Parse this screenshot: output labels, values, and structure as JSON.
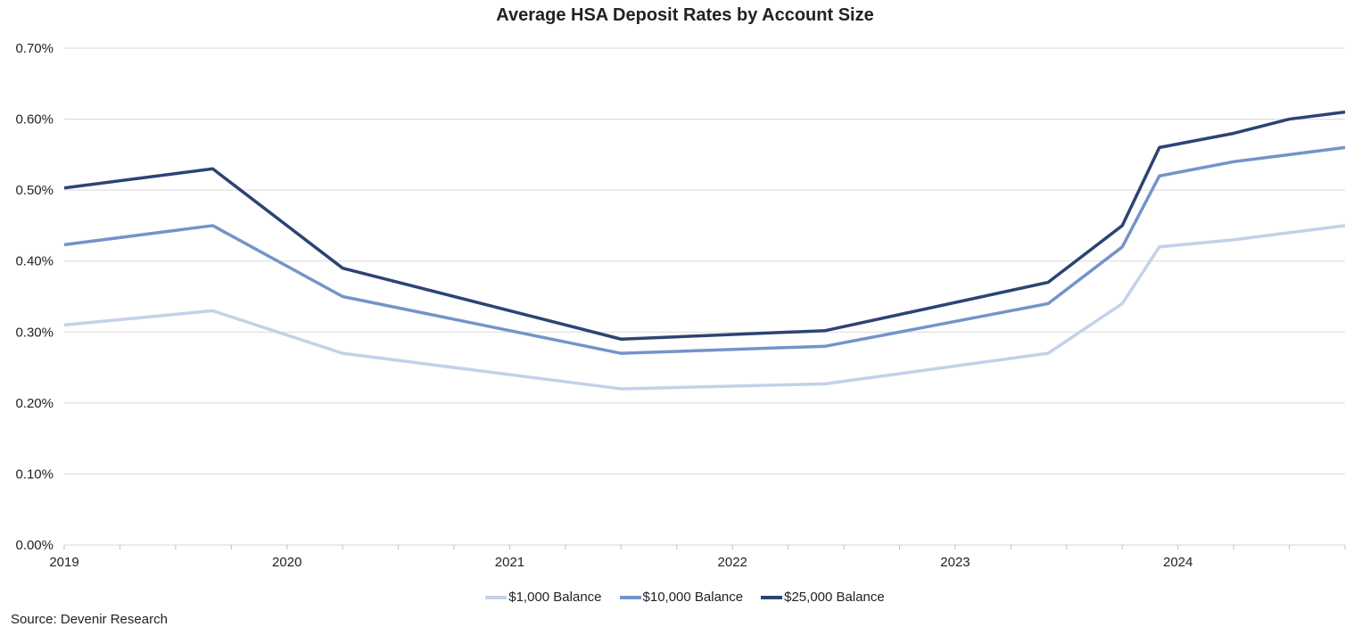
{
  "chart_data": {
    "type": "line",
    "title": "Average HSA Deposit Rates by Account Size",
    "xlabel": "",
    "ylabel": "",
    "xlim": [
      "2019-01",
      "2024-10"
    ],
    "ylim": [
      0,
      0.7
    ],
    "y_ticks": [
      "0.00%",
      "0.10%",
      "0.20%",
      "0.30%",
      "0.40%",
      "0.50%",
      "0.60%",
      "0.70%"
    ],
    "x_ticks": [
      "2019",
      "2020",
      "2021",
      "2022",
      "2023",
      "2024"
    ],
    "grid": "horizontal",
    "legend": "bottom",
    "x": [
      "2019-01",
      "2019-09",
      "2020-04",
      "2021-07",
      "2022-06",
      "2023-06",
      "2023-10",
      "2023-12",
      "2024-04",
      "2024-07",
      "2024-10"
    ],
    "series": [
      {
        "name": "$1,000 Balance",
        "color": "#c3d1e9",
        "values": [
          0.31,
          0.33,
          0.27,
          0.22,
          0.227,
          0.27,
          0.34,
          0.42,
          0.43,
          0.44,
          0.45
        ]
      },
      {
        "name": "$10,000 Balance",
        "color": "#7394c9",
        "values": [
          0.423,
          0.45,
          0.35,
          0.27,
          0.28,
          0.34,
          0.42,
          0.52,
          0.54,
          0.55,
          0.56
        ]
      },
      {
        "name": "$25,000 Balance",
        "color": "#2c4473",
        "values": [
          0.503,
          0.53,
          0.39,
          0.29,
          0.302,
          0.37,
          0.45,
          0.56,
          0.58,
          0.6,
          0.61
        ]
      }
    ]
  },
  "source": "Source: Devenir Research"
}
